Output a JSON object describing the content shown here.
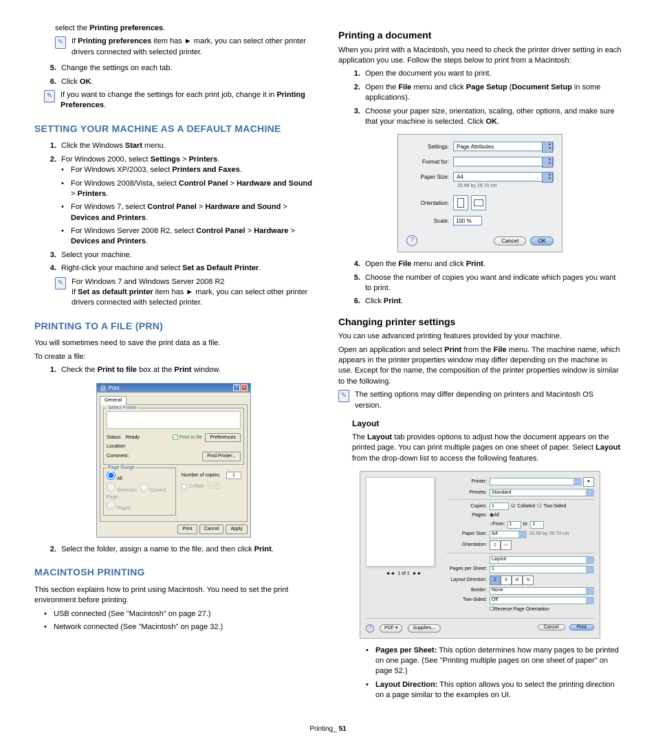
{
  "colors": {
    "heading": "#3b6ea5",
    "text": "#000000",
    "dialog_bg_win": "#ece9d8",
    "dialog_bg_mac": "#eceef0",
    "select_outline": "#6688bb",
    "select_cap": "#a7c0e6"
  },
  "left": {
    "line1": "select the <b>Printing preferences</b>.",
    "note1": "If <b>Printing preferences</b> item has ► mark, you can select other printer drivers connected with selected printer.",
    "step5": "Change the settings on each tab.",
    "step6": "Click <b>OK</b>.",
    "note2": "If you want to change the settings for each print job, change it in <b>Printing Preferences</b>.",
    "h_default": "SETTING YOUR MACHINE AS A DEFAULT MACHINE",
    "d1": "Click the Windows <b>Start</b> menu.",
    "d2": "For Windows 2000, select <b>Settings</b> > <b>Printers</b>.",
    "d2a": "For Windows XP/2003, select <b>Printers and Faxes</b>.",
    "d2b": "For Windows 2008/Vista, select <b>Control Panel</b> > <b>Hardware and Sound</b> > <b>Printers</b>.",
    "d2c": "For Windows 7, select <b>Control Panel</b> > <b>Hardware and Sound</b> > <b>Devices and Printers</b>.",
    "d2d": "For Windows Server 2008 R2, select <b>Control Panel</b> > <b>Hardware</b> > <b>Devices and Printers</b>.",
    "d3": "Select your machine.",
    "d4": "Right-click your machine and select <b>Set as Default Printer</b>.",
    "note3a": "For Windows 7 and Windows Server 2008 R2",
    "note3b": "If <b>Set as default printer</b> item has ► mark, you can select other printer drivers connected with selected printer.",
    "h_prn": "PRINTING TO A FILE (PRN)",
    "prn_p1": "You will sometimes need to save the print data as a file.",
    "prn_p2": "To create a file:",
    "prn_s1": "Check the <b>Print to file</b> box at the <b>Print</b> window.",
    "prn_s2": "Select the folder, assign a name to the file, and then click <b>Print</b>.",
    "h_mac": "MACINTOSH PRINTING",
    "mac_p1": "This section explains how to print using Macintosh. You need to set the print environment before printing.",
    "mac_b1": "USB connected (See \"Macintosh\" on page 27.)",
    "mac_b2": "Network connected (See \"Macintosh\" on page 32.)"
  },
  "right": {
    "h_printdoc": "Printing a document",
    "pd_p1": "When you print with a Macintosh, you need to check the printer driver setting in each application you use. Follow the steps below to print from a Macintosh:",
    "pd1": "Open the document you want to print.",
    "pd2": "Open the <b>File</b> menu and click <b>Page Setup</b> (<b>Document Setup</b> in some applications).",
    "pd3": "Choose your paper size, orientation, scaling, other options, and make sure that your machine is selected. Click <b>OK</b>.",
    "pd4": "Open the <b>File</b> menu and click <b>Print</b>.",
    "pd5": "Choose the number of copies you want and indicate which pages you want to print.",
    "pd6": "Click <b>Print</b>.",
    "h_changing": "Changing printer settings",
    "cs_p1": "You can use advanced printing features provided by your machine.",
    "cs_p2": "Open an application and select <b>Print</b> from the <b>File</b> menu. The machine name, which appears in the printer properties window may differ depending on the machine in use. Except for the name, the composition of the printer properties window is similar to the following.",
    "cs_note": "The setting options may differ depending on printers and Macintosh OS version.",
    "h_layout": "Layout",
    "layout_p1": "The <b>Layout</b> tab provides options to adjust how the document appears on the printed page. You can print multiple pages on one sheet of paper. Select <b>Layout</b> from the drop-down list to access the following features.",
    "layout_b1": "<b>Pages per Sheet:</b> This option determines how many pages to be printed on one page. (See \"Printing multiple pages on one sheet of paper\" on page 52.)",
    "layout_b2": "<b>Layout Direction:</b> This option allows you to select the printing direction on a page similar to the examples on UI."
  },
  "winDialog": {
    "title": "Print",
    "tab": "General",
    "group_select": "Select Printer",
    "status_label": "Status:",
    "status_value": "Ready",
    "location_label": "Location:",
    "comment_label": "Comment:",
    "print_to_file": "Print to file",
    "preferences": "Preferences",
    "find_printer": "Find Printer...",
    "group_range": "Page Range",
    "all": "All",
    "selection": "Selection",
    "current": "Current Page",
    "pages": "Pages:",
    "copies_label": "Number of copies:",
    "copies_value": "1",
    "collate": "Collate",
    "btn_print": "Print",
    "btn_cancel": "Cancel",
    "btn_apply": "Apply"
  },
  "macPageSetup": {
    "settings_label": "Settings:",
    "settings_value": "Page Attributes",
    "format_label": "Format for:",
    "paper_label": "Paper Size:",
    "paper_value": "A4",
    "paper_sub": "20.99 by 29.70 cm",
    "orient_label": "Orientation:",
    "scale_label": "Scale:",
    "scale_value": "100 %",
    "cancel": "Cancel",
    "ok": "OK"
  },
  "macPrint": {
    "printer_label": "Printer:",
    "presets_label": "Presets:",
    "presets_value": "Standard",
    "copies_label": "Copies:",
    "copies_value": "1",
    "collated": "Collated",
    "twosided": "Two-Sided",
    "pages_label": "Pages:",
    "all": "All",
    "from": "From:",
    "from_value": "1",
    "to": "to:",
    "to_value": "1",
    "paper_label": "Paper Size:",
    "paper_value": "A4",
    "paper_dim": "20.99 by 29.70 cm",
    "orient_label": "Orientation:",
    "panel_value": "Layout",
    "pps_label": "Pages per Sheet:",
    "pps_value": "1",
    "ld_label": "Layout Direction:",
    "border_label": "Border:",
    "border_value": "None",
    "ts_label": "Two-Sided:",
    "ts_value": "Off",
    "rpo": "Reverse Page Orientation",
    "preview_ctrl": "1 of 1",
    "pdf": "PDF ▾",
    "supplies": "Supplies…",
    "cancel": "Cancel",
    "print": "Print"
  },
  "footer": {
    "label": "Printing_",
    "page": "51"
  }
}
